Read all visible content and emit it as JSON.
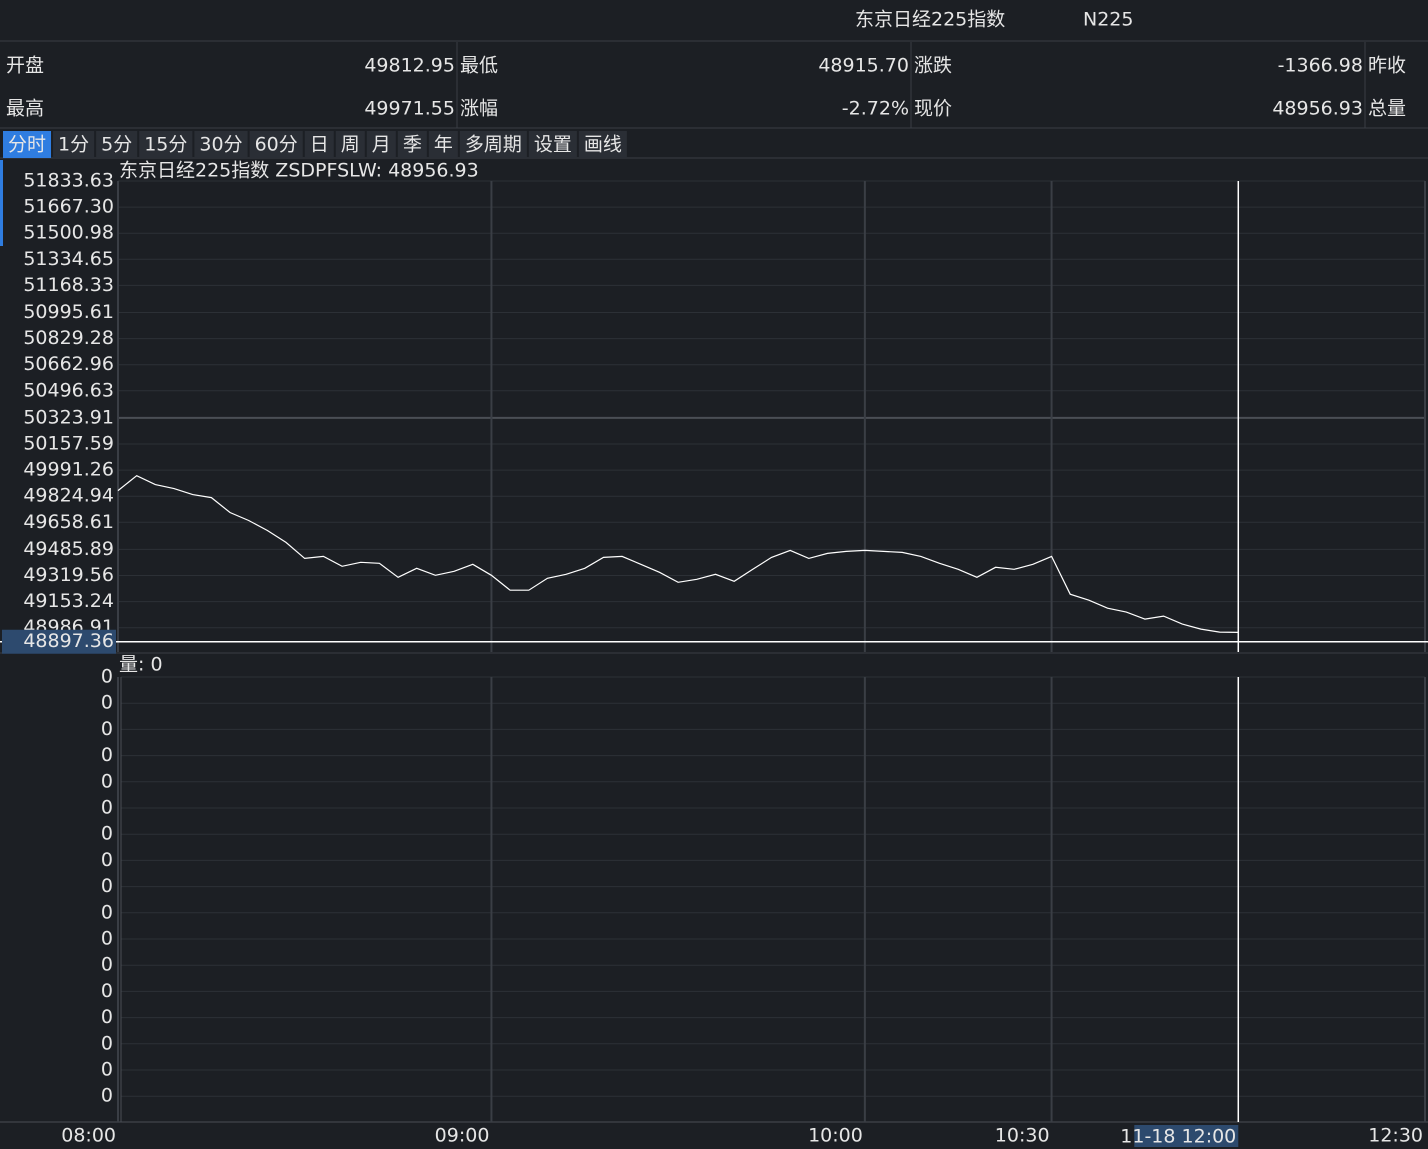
{
  "header": {
    "name": "东京日经225指数",
    "code": "N225"
  },
  "stats": [
    {
      "label": "开盘",
      "value": "49812.95"
    },
    {
      "label": "最低",
      "value": "48915.70"
    },
    {
      "label": "涨跌",
      "value": "-1366.98"
    },
    {
      "label": "昨收"
    },
    {
      "label": "最高",
      "value": "49971.55"
    },
    {
      "label": "涨幅",
      "value": "-2.72%"
    },
    {
      "label": "现价",
      "value": "48956.93"
    },
    {
      "label": "总量"
    }
  ],
  "tabs": [
    "分时",
    "1分",
    "5分",
    "15分",
    "30分",
    "60分",
    "日",
    "周",
    "月",
    "季",
    "年",
    "多周期",
    "设置",
    "画线"
  ],
  "selected_tab": 0,
  "chart_data": {
    "type": "line",
    "title": "东京日经225指数 ZSDPFSLW: 48956.93",
    "x": [
      480,
      483,
      486,
      489,
      492,
      495,
      498,
      501,
      504,
      507,
      510,
      513,
      516,
      519,
      522,
      525,
      528,
      531,
      534,
      537,
      540,
      543,
      546,
      549,
      552,
      555,
      558,
      561,
      564,
      567,
      570,
      573,
      576,
      579,
      582,
      585,
      588,
      591,
      594,
      597,
      600,
      603,
      606,
      609,
      612,
      615,
      618,
      621,
      624,
      627,
      630,
      633,
      636,
      639,
      642,
      645,
      648,
      651,
      654,
      657,
      660
    ],
    "values": [
      49860.5,
      49955.7,
      49898.6,
      49873.2,
      49835.1,
      49816.0,
      49720.8,
      49670.0,
      49606.5,
      49530.4,
      49428.8,
      49441.5,
      49378.0,
      49403.4,
      49397.0,
      49308.2,
      49365.3,
      49320.9,
      49346.2,
      49390.7,
      49320.9,
      49225.6,
      49225.6,
      49301.8,
      49327.2,
      49365.3,
      49435.1,
      49441.5,
      49390.7,
      49339.9,
      49276.4,
      49295.5,
      49327.2,
      49282.8,
      49358.9,
      49435.1,
      49479.6,
      49428.8,
      49460.5,
      49473.2,
      49479.6,
      49473.2,
      49466.9,
      49441.5,
      49397.0,
      49358.9,
      49308.2,
      49371.6,
      49358.9,
      49390.7,
      49441.5,
      49200.2,
      49162.1,
      49111.4,
      49086.0,
      49041.5,
      49060.6,
      49009.8,
      48978.0,
      48959.0,
      48956.9
    ],
    "color": "#ffffff",
    "xlim": [
      480,
      690
    ],
    "ylim": [
      48832,
      51833.63
    ],
    "xticks": [
      {
        "value": 480,
        "label": "08:00"
      },
      {
        "value": 540,
        "label": "09:00"
      },
      {
        "value": 600,
        "label": "10:00"
      },
      {
        "value": 630,
        "label": "10:30"
      },
      {
        "value": 690,
        "label": "12:30"
      }
    ],
    "yticks": [
      51833.63,
      {
        "value": 51667.3,
        "label": "51667.30"
      },
      51500.98,
      51334.65,
      51168.33,
      50995.61,
      50829.28,
      50662.96,
      50496.63,
      50323.91,
      50157.59,
      49991.26,
      49824.94,
      49658.61,
      49485.89,
      49319.56,
      49153.24,
      48986.91
    ],
    "grid": true,
    "up_color": "#e8364e",
    "down_color": "#3ec28f",
    "flat_color": "#e6e6e6",
    "crosshair": {
      "x": 660,
      "y": 48897.36,
      "x_label": "11-18 12:00"
    }
  },
  "volume": {
    "label": "量: 0",
    "axis_labels": [
      "0",
      "0",
      "0",
      "0",
      "0",
      "0",
      "0",
      "0",
      "0",
      "0",
      "0",
      "0",
      "0",
      "0",
      "0",
      "0",
      "0"
    ]
  }
}
